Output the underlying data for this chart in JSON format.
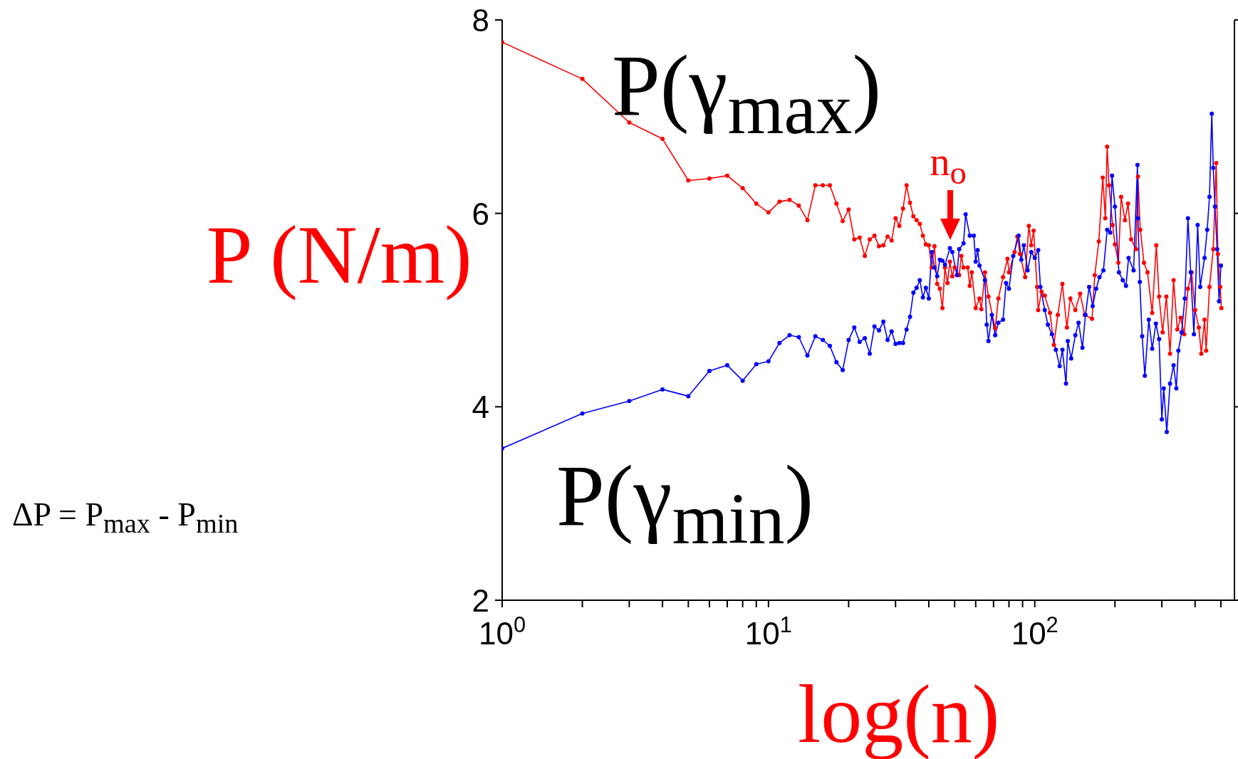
{
  "chart_data": {
    "type": "line",
    "xlabel": "log(n)",
    "ylabel": "P (N/m)",
    "log": "x",
    "marker": "circle",
    "line_style": "solid",
    "xlim": [
      1,
      562
    ],
    "xticks": [
      {
        "value": 1,
        "label": "10$^{0}$"
      },
      {
        "value": 2,
        "label": null
      },
      {
        "value": 3,
        "label": null
      },
      {
        "value": 4,
        "label": null
      },
      {
        "value": 5,
        "label": null
      },
      {
        "value": 6,
        "label": null
      },
      {
        "value": 7,
        "label": null
      },
      {
        "value": 8,
        "label": null
      },
      {
        "value": 9,
        "label": null
      },
      {
        "value": 10,
        "label": "10$^{1}$"
      },
      {
        "value": 20,
        "label": null
      },
      {
        "value": 30,
        "label": null
      },
      {
        "value": 40,
        "label": null
      },
      {
        "value": 50,
        "label": null
      },
      {
        "value": 60,
        "label": null
      },
      {
        "value": 70,
        "label": null
      },
      {
        "value": 80,
        "label": null
      },
      {
        "value": 90,
        "label": null
      },
      {
        "value": 100,
        "label": "10$^{2}$"
      },
      {
        "value": 200,
        "label": null
      },
      {
        "value": 300,
        "label": null
      },
      {
        "value": 400,
        "label": null
      },
      {
        "value": 500,
        "label": null
      }
    ],
    "ylim": [
      2,
      8
    ],
    "yticks": [
      2,
      4,
      6,
      8
    ],
    "annotations": [
      "P(γ$_{max}$)",
      "P(γ$_{min}$)",
      {
        "text": "n$_{o}$",
        "x": 48,
        "y": 5.64
      },
      "ΔP = P$_{max}$ - P$_{min}$"
    ],
    "series": [
      {
        "color": "#ff0000",
        "x": [
          1,
          2,
          3,
          4,
          5,
          6,
          7,
          8,
          9,
          10,
          11,
          12,
          13,
          14,
          15,
          16,
          17,
          18,
          19,
          20,
          21,
          22,
          23,
          24,
          25,
          26,
          27,
          28,
          29,
          30,
          31,
          32,
          33,
          34,
          35,
          36,
          37,
          38,
          39,
          40,
          41,
          42,
          43,
          44,
          45,
          46,
          47,
          48,
          49,
          50,
          52,
          53,
          54,
          56,
          57,
          58,
          60,
          62,
          63,
          65,
          67,
          71,
          73,
          76,
          79,
          80,
          84,
          86,
          88,
          92,
          95,
          97,
          99,
          102,
          103,
          106,
          109,
          114,
          118,
          122,
          127,
          132,
          136,
          142,
          148,
          154,
          164,
          168,
          174,
          180,
          184,
          187,
          190,
          196,
          200,
          206,
          211,
          218,
          224,
          230,
          240,
          244,
          249,
          257,
          265,
          276,
          286,
          293,
          302,
          312,
          322,
          332,
          343,
          353,
          364,
          376,
          388,
          400,
          413,
          422,
          434,
          440,
          453,
          468,
          480,
          487,
          497,
          502
        ],
        "values": [
          7.77,
          7.39,
          6.94,
          6.77,
          6.34,
          6.36,
          6.39,
          6.26,
          6.1,
          6.01,
          6.12,
          6.14,
          6.08,
          5.93,
          6.29,
          6.29,
          6.29,
          6.1,
          5.92,
          6.04,
          5.73,
          5.75,
          5.56,
          5.73,
          5.77,
          5.66,
          5.67,
          5.76,
          5.72,
          5.95,
          5.87,
          6.05,
          6.29,
          6.11,
          5.97,
          5.93,
          5.89,
          5.77,
          5.68,
          5.67,
          5.44,
          5.66,
          5.27,
          5.22,
          5.02,
          5.44,
          5.28,
          5.5,
          5.35,
          5.44,
          5.36,
          5.56,
          5.44,
          5.44,
          5.25,
          5.39,
          5.02,
          5.12,
          5.01,
          5.39,
          5.14,
          4.81,
          5.12,
          5.34,
          5.53,
          5.39,
          5.6,
          5.76,
          5.58,
          5.34,
          5.87,
          5.67,
          5.82,
          5.24,
          5.0,
          5.19,
          5.15,
          4.97,
          4.64,
          4.95,
          5.27,
          4.82,
          5.12,
          5.0,
          5.17,
          4.95,
          4.91,
          5.36,
          5.71,
          6.37,
          5.95,
          6.69,
          6.29,
          5.88,
          5.68,
          5.49,
          6.17,
          5.93,
          6.1,
          5.73,
          5.63,
          6.38,
          5.83,
          5.49,
          5.39,
          4.97,
          5.67,
          5.14,
          4.77,
          5.14,
          4.55,
          5.31,
          4.8,
          4.92,
          4.75,
          5.22,
          5.39,
          5.0,
          4.82,
          4.55,
          4.9,
          4.58,
          5.24,
          5.63,
          6.52,
          5.58,
          5.24,
          5.02
        ]
      },
      {
        "color": "#0000ff",
        "x": [
          1,
          2,
          3,
          4,
          5,
          6,
          7,
          8,
          9,
          10,
          11,
          12,
          13,
          14,
          15,
          16,
          17,
          18,
          19,
          20,
          21,
          22,
          23,
          24,
          25,
          26,
          27,
          28,
          29,
          30,
          31,
          32,
          33,
          34,
          35,
          36,
          37,
          38,
          39,
          40,
          41,
          42,
          43,
          44,
          45,
          46,
          48,
          49,
          51,
          52,
          54,
          55,
          57,
          59,
          60,
          61,
          62,
          65,
          66,
          67,
          69,
          71,
          73,
          76,
          78,
          80,
          83,
          87,
          89,
          91,
          94,
          97,
          100,
          103,
          105,
          109,
          112,
          116,
          120,
          124,
          127,
          131,
          133,
          137,
          142,
          146,
          151,
          155,
          160,
          165,
          170,
          175,
          181,
          187,
          192,
          195,
          200,
          207,
          214,
          220,
          225,
          235,
          243,
          244,
          248,
          253,
          259,
          268,
          276,
          285,
          293,
          300,
          305,
          313,
          322,
          332,
          340,
          346,
          356,
          366,
          376,
          385,
          396,
          409,
          418,
          434,
          444,
          453,
          462,
          468,
          475,
          484,
          492,
          500
        ],
        "values": [
          3.57,
          3.93,
          4.06,
          4.18,
          4.11,
          4.37,
          4.43,
          4.27,
          4.44,
          4.47,
          4.66,
          4.74,
          4.72,
          4.53,
          4.73,
          4.69,
          4.63,
          4.46,
          4.38,
          4.69,
          4.82,
          4.67,
          4.71,
          4.55,
          4.83,
          4.79,
          4.88,
          4.69,
          4.78,
          4.65,
          4.66,
          4.66,
          4.8,
          4.93,
          5.18,
          5.23,
          5.31,
          5.13,
          5.23,
          5.12,
          5.6,
          5.44,
          5.35,
          5.52,
          5.51,
          5.47,
          5.64,
          5.6,
          5.36,
          5.63,
          5.69,
          5.99,
          5.77,
          5.77,
          5.5,
          5.62,
          5.46,
          5.31,
          4.85,
          4.68,
          4.95,
          4.74,
          4.87,
          4.9,
          5.28,
          5.22,
          5.56,
          5.77,
          5.52,
          5.67,
          5.41,
          5.6,
          5.54,
          5.62,
          5.24,
          5.0,
          4.85,
          4.75,
          4.59,
          4.42,
          4.59,
          4.24,
          4.68,
          4.5,
          4.74,
          4.87,
          4.61,
          4.95,
          5.24,
          5.04,
          5.22,
          5.34,
          5.41,
          5.83,
          5.8,
          6.39,
          6.07,
          5.39,
          5.31,
          5.25,
          5.54,
          5.41,
          6.5,
          5.95,
          5.29,
          4.73,
          4.32,
          4.9,
          4.6,
          4.86,
          4.7,
          3.87,
          4.19,
          3.74,
          4.24,
          4.43,
          4.19,
          4.58,
          4.77,
          5.12,
          5.95,
          5.39,
          4.75,
          5.88,
          5.24,
          5.54,
          5.83,
          6.17,
          7.03,
          6.47,
          6.07,
          5.63,
          5.09,
          5.46
        ]
      }
    ]
  }
}
